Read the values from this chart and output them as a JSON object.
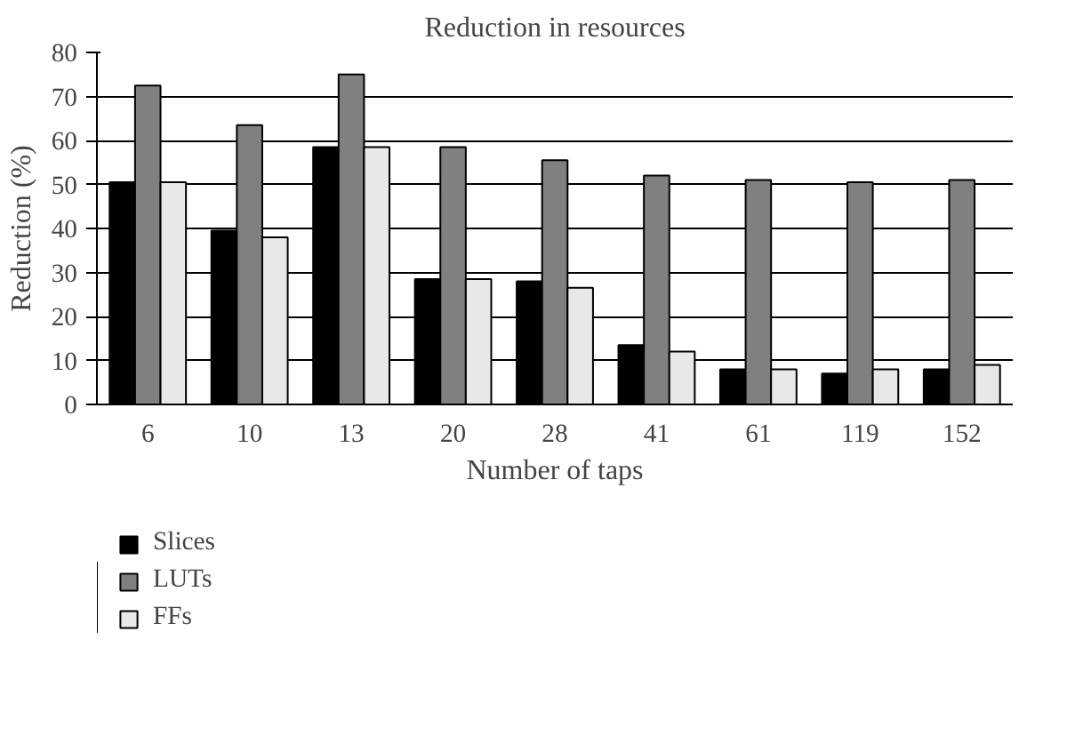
{
  "chart_data": {
    "type": "bar",
    "title": "Reduction in resources",
    "xlabel": "Number of taps",
    "ylabel": "Reduction (%)",
    "categories": [
      "6",
      "10",
      "13",
      "20",
      "28",
      "41",
      "61",
      "119",
      "152"
    ],
    "series": [
      {
        "name": "Slices",
        "color": "#000000",
        "values": [
          50.5,
          39.5,
          58.5,
          28.5,
          28,
          13.5,
          8,
          7,
          8
        ]
      },
      {
        "name": "LUTs",
        "color": "#808080",
        "values": [
          72.5,
          63.5,
          75,
          58.5,
          55.5,
          52,
          51,
          50.5,
          51
        ]
      },
      {
        "name": "FFs",
        "color": "#e8e8e8",
        "values": [
          50.5,
          38,
          58.5,
          28.5,
          26.5,
          12,
          8,
          8,
          9
        ]
      }
    ],
    "ylim": [
      0,
      80
    ],
    "yticks": [
      0,
      10,
      20,
      30,
      40,
      50,
      60,
      70,
      80
    ],
    "grid": "y",
    "legend": "bottom"
  }
}
